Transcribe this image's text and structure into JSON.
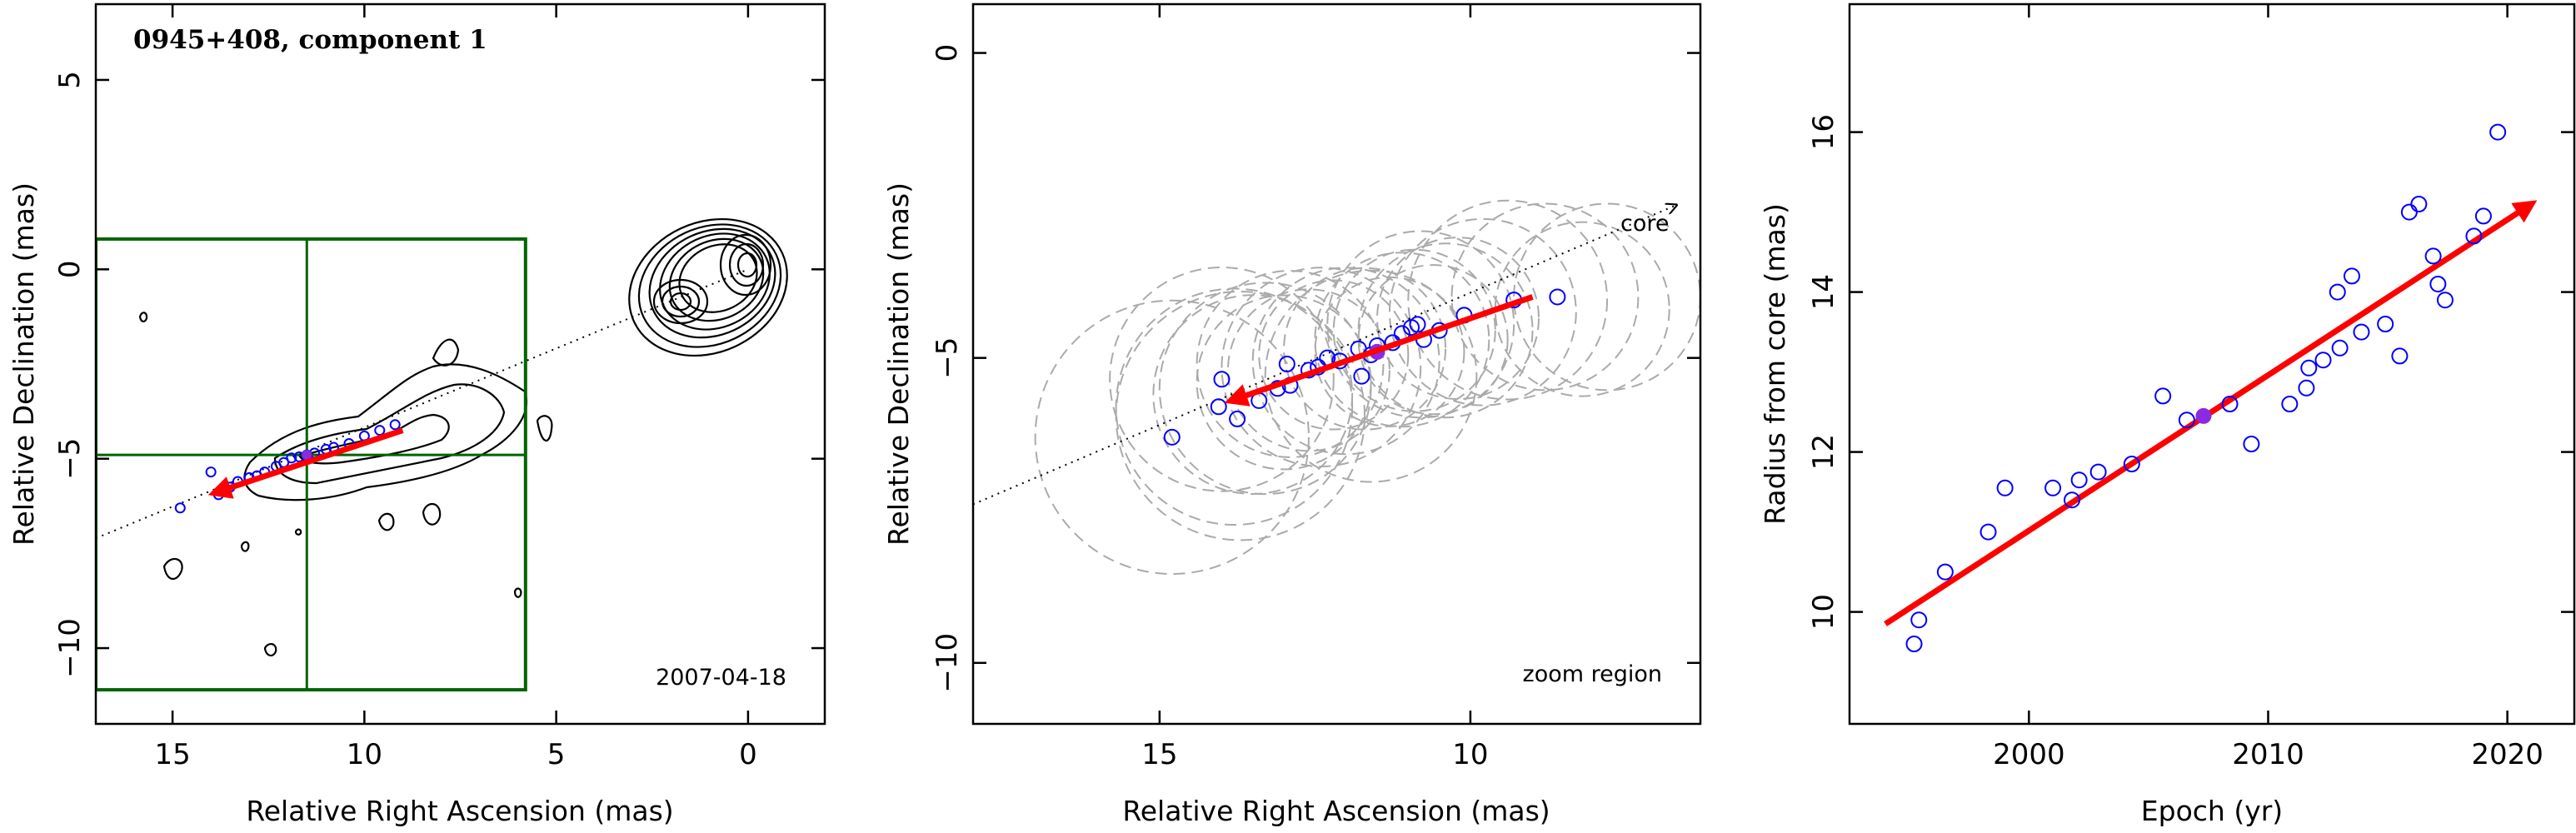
{
  "colors": {
    "arrow": "#ff0000",
    "points": "#0000ff",
    "highlight": "#8a2be2",
    "box": "#006400",
    "circles": "#aaaaaa",
    "contours": "#000000"
  },
  "chart_data": [
    {
      "type": "scatter",
      "title": "0945+408, component 1",
      "annotation": "2007-04-18",
      "xlabel": "Relative Right Ascension (mas)",
      "ylabel": "Relative Declination (mas)",
      "xlim": [
        17,
        -2
      ],
      "ylim": [
        -12,
        7
      ],
      "xticks": [
        15,
        10,
        5,
        0
      ],
      "yticks": [
        5,
        0,
        -5,
        -10
      ],
      "xtick_labels": [
        "15",
        "10",
        "5",
        "0"
      ],
      "ytick_labels": [
        "5",
        "0",
        "−5",
        "−10"
      ],
      "zoom_box": {
        "x": [
          17,
          5.8
        ],
        "y": [
          0.8,
          -11.1
        ],
        "cross_x": 11.5,
        "cross_y": -4.9
      },
      "motion_arrow": {
        "from": [
          9.0,
          -4.25
        ],
        "to": [
          13.9,
          -5.9
        ]
      },
      "line": {
        "from": [
          17,
          -7.1
        ],
        "to": [
          0,
          0
        ]
      },
      "points": [
        {
          "x": 14.8,
          "y": -6.3
        },
        {
          "x": 14.0,
          "y": -5.35
        },
        {
          "x": 13.8,
          "y": -5.95
        },
        {
          "x": 13.5,
          "y": -5.75
        },
        {
          "x": 13.3,
          "y": -5.6
        },
        {
          "x": 13.0,
          "y": -5.5
        },
        {
          "x": 12.8,
          "y": -5.45
        },
        {
          "x": 12.6,
          "y": -5.35
        },
        {
          "x": 12.3,
          "y": -5.2
        },
        {
          "x": 12.1,
          "y": -5.1
        },
        {
          "x": 11.9,
          "y": -4.98
        },
        {
          "x": 11.7,
          "y": -4.95
        },
        {
          "x": 11.5,
          "y": -4.9
        },
        {
          "x": 11.3,
          "y": -4.85
        },
        {
          "x": 11.0,
          "y": -4.75
        },
        {
          "x": 10.8,
          "y": -4.7
        },
        {
          "x": 10.4,
          "y": -4.6
        },
        {
          "x": 10.0,
          "y": -4.4
        },
        {
          "x": 9.6,
          "y": -4.25
        },
        {
          "x": 9.2,
          "y": -4.1
        }
      ],
      "highlight_point": {
        "x": 11.5,
        "y": -4.9
      }
    },
    {
      "type": "scatter",
      "annotation": "zoom region",
      "core_label": "core",
      "xlabel": "Relative Right Ascension (mas)",
      "ylabel": "Relative Declination (mas)",
      "xlim": [
        18,
        6.3
      ],
      "ylim": [
        -11,
        0.8
      ],
      "xticks": [
        15,
        10
      ],
      "yticks": [
        0,
        -5,
        -10
      ],
      "xtick_labels": [
        "15",
        "10"
      ],
      "ytick_labels": [
        "0",
        "−5",
        "−10"
      ],
      "motion_arrow": {
        "from": [
          9.0,
          -4.0
        ],
        "to": [
          13.85,
          -5.7
        ]
      },
      "line": {
        "from": [
          18,
          -7.4
        ],
        "to": [
          6.7,
          -2.5
        ]
      },
      "circles": [
        {
          "x": 14.8,
          "y": -6.3,
          "r": 2.2
        },
        {
          "x": 14.0,
          "y": -5.35,
          "r": 1.8
        },
        {
          "x": 13.8,
          "y": -5.8,
          "r": 1.9
        },
        {
          "x": 13.7,
          "y": -5.95,
          "r": 2.0
        },
        {
          "x": 13.5,
          "y": -5.6,
          "r": 1.6
        },
        {
          "x": 13.3,
          "y": -5.5,
          "r": 1.7
        },
        {
          "x": 13.0,
          "y": -5.4,
          "r": 1.4
        },
        {
          "x": 12.9,
          "y": -5.1,
          "r": 1.5
        },
        {
          "x": 12.6,
          "y": -5.2,
          "r": 1.3
        },
        {
          "x": 12.4,
          "y": -5.15,
          "r": 1.6
        },
        {
          "x": 12.2,
          "y": -4.95,
          "r": 1.2
        },
        {
          "x": 12.0,
          "y": -5.05,
          "r": 1.5
        },
        {
          "x": 11.7,
          "y": -4.85,
          "r": 1.3
        },
        {
          "x": 11.6,
          "y": -5.3,
          "r": 1.7
        },
        {
          "x": 11.3,
          "y": -4.9,
          "r": 1.2
        },
        {
          "x": 11.1,
          "y": -4.7,
          "r": 1.4
        },
        {
          "x": 10.9,
          "y": -4.55,
          "r": 1.3
        },
        {
          "x": 10.8,
          "y": -4.45,
          "r": 1.5
        },
        {
          "x": 10.6,
          "y": -4.7,
          "r": 1.2
        },
        {
          "x": 10.4,
          "y": -4.55,
          "r": 1.4
        },
        {
          "x": 10.2,
          "y": -4.35,
          "r": 1.3
        },
        {
          "x": 9.8,
          "y": -4.25,
          "r": 1.5
        },
        {
          "x": 9.4,
          "y": -4.05,
          "r": 1.6
        },
        {
          "x": 8.8,
          "y": -4.0,
          "r": 1.5
        },
        {
          "x": 8.2,
          "y": -4.2,
          "r": 1.4
        },
        {
          "x": 7.8,
          "y": -4.0,
          "r": 1.5
        }
      ],
      "points": [
        {
          "x": 14.8,
          "y": -6.3
        },
        {
          "x": 14.0,
          "y": -5.35
        },
        {
          "x": 14.05,
          "y": -5.8
        },
        {
          "x": 13.75,
          "y": -6.0
        },
        {
          "x": 13.4,
          "y": -5.7
        },
        {
          "x": 13.1,
          "y": -5.5
        },
        {
          "x": 12.95,
          "y": -5.1
        },
        {
          "x": 12.9,
          "y": -5.45
        },
        {
          "x": 12.6,
          "y": -5.2
        },
        {
          "x": 12.45,
          "y": -5.15
        },
        {
          "x": 12.3,
          "y": -5.0
        },
        {
          "x": 12.1,
          "y": -5.05
        },
        {
          "x": 11.8,
          "y": -4.85
        },
        {
          "x": 11.75,
          "y": -5.3
        },
        {
          "x": 11.6,
          "y": -4.95
        },
        {
          "x": 11.5,
          "y": -4.8
        },
        {
          "x": 11.25,
          "y": -4.75
        },
        {
          "x": 11.1,
          "y": -4.6
        },
        {
          "x": 10.95,
          "y": -4.5
        },
        {
          "x": 10.85,
          "y": -4.45
        },
        {
          "x": 10.75,
          "y": -4.7
        },
        {
          "x": 10.5,
          "y": -4.55
        },
        {
          "x": 10.1,
          "y": -4.3
        },
        {
          "x": 9.3,
          "y": -4.05
        },
        {
          "x": 8.6,
          "y": -4.0
        }
      ],
      "highlight_point": {
        "x": 11.5,
        "y": -4.9
      }
    },
    {
      "type": "scatter",
      "xlabel": "Epoch (yr)",
      "ylabel": "Radius from core (mas)",
      "xlim": [
        1992.5,
        2022.8
      ],
      "ylim": [
        8.6,
        17.6
      ],
      "xticks": [
        2000,
        2010,
        2020
      ],
      "yticks": [
        10,
        12,
        14,
        16
      ],
      "xtick_labels": [
        "2000",
        "2010",
        "2020"
      ],
      "ytick_labels": [
        "10",
        "12",
        "14",
        "16"
      ],
      "trend_arrow": {
        "from": [
          1994.0,
          9.85
        ],
        "to": [
          2021.0,
          15.1
        ]
      },
      "points": [
        {
          "x": 1995.2,
          "y": 9.6
        },
        {
          "x": 1995.4,
          "y": 9.9
        },
        {
          "x": 1996.5,
          "y": 10.5
        },
        {
          "x": 1998.3,
          "y": 11.0
        },
        {
          "x": 1999.0,
          "y": 11.55
        },
        {
          "x": 2001.0,
          "y": 11.55
        },
        {
          "x": 2001.8,
          "y": 11.4
        },
        {
          "x": 2002.1,
          "y": 11.65
        },
        {
          "x": 2002.9,
          "y": 11.75
        },
        {
          "x": 2004.3,
          "y": 11.85
        },
        {
          "x": 2005.6,
          "y": 12.7
        },
        {
          "x": 2006.6,
          "y": 12.4
        },
        {
          "x": 2008.4,
          "y": 12.6
        },
        {
          "x": 2009.3,
          "y": 12.1
        },
        {
          "x": 2010.9,
          "y": 12.6
        },
        {
          "x": 2011.6,
          "y": 12.8
        },
        {
          "x": 2011.7,
          "y": 13.05
        },
        {
          "x": 2012.3,
          "y": 13.15
        },
        {
          "x": 2013.0,
          "y": 13.3
        },
        {
          "x": 2012.9,
          "y": 14.0
        },
        {
          "x": 2013.5,
          "y": 14.2
        },
        {
          "x": 2013.9,
          "y": 13.5
        },
        {
          "x": 2014.9,
          "y": 13.6
        },
        {
          "x": 2015.5,
          "y": 13.2
        },
        {
          "x": 2015.9,
          "y": 15.0
        },
        {
          "x": 2016.3,
          "y": 15.1
        },
        {
          "x": 2016.9,
          "y": 14.45
        },
        {
          "x": 2017.1,
          "y": 14.1
        },
        {
          "x": 2017.4,
          "y": 13.9
        },
        {
          "x": 2018.6,
          "y": 14.7
        },
        {
          "x": 2019.0,
          "y": 14.95
        },
        {
          "x": 2019.6,
          "y": 16.0
        }
      ],
      "highlight_point": {
        "x": 2007.3,
        "y": 12.45
      }
    }
  ]
}
